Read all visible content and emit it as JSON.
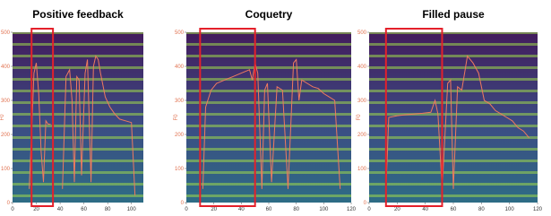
{
  "chart_data": [
    {
      "type": "spectrogram",
      "title": "Positive feedback",
      "ylabel": "F0",
      "xlim": [
        0,
        110
      ],
      "xticks": [
        0,
        20,
        40,
        60,
        80,
        100
      ],
      "ylim": [
        0,
        500
      ],
      "yticks": [
        0,
        100,
        200,
        300,
        400,
        500
      ],
      "highlight": [
        16,
        34
      ],
      "box_color": "#e4202a",
      "series": [
        {
          "color": "#ef7a5e",
          "x": [
            14,
            16,
            18,
            20,
            22,
            24,
            26,
            28,
            30,
            32,
            38,
            42,
            45,
            48,
            50,
            52,
            54,
            56,
            58,
            61,
            63,
            66,
            68,
            70,
            72,
            74,
            78,
            82,
            86,
            90,
            95,
            100,
            103
          ],
          "values": [
            40,
            200,
            380,
            410,
            320,
            150,
            60,
            240,
            230,
            230,
            null,
            40,
            370,
            390,
            300,
            60,
            370,
            360,
            80,
            380,
            420,
            60,
            400,
            430,
            420,
            380,
            310,
            280,
            260,
            245,
            240,
            235,
            20
          ]
        }
      ]
    },
    {
      "type": "spectrogram",
      "title": "Coquetry",
      "ylabel": "F0",
      "xlim": [
        0,
        120
      ],
      "xticks": [
        0,
        20,
        40,
        60,
        80,
        100,
        120
      ],
      "ylim": [
        0,
        500
      ],
      "yticks": [
        0,
        100,
        200,
        300,
        400,
        500
      ],
      "highlight": [
        10,
        50
      ],
      "box_color": "#e4202a",
      "series": [
        {
          "color": "#ef7a5e",
          "x": [
            12,
            14,
            18,
            22,
            28,
            34,
            40,
            46,
            48,
            50,
            52,
            55,
            57,
            59,
            62,
            66,
            70,
            74,
            78,
            80,
            82,
            84,
            88,
            92,
            96,
            100,
            104,
            108,
            112
          ],
          "values": [
            40,
            280,
            330,
            350,
            360,
            370,
            380,
            390,
            360,
            410,
            380,
            40,
            330,
            350,
            60,
            340,
            330,
            40,
            410,
            420,
            300,
            360,
            350,
            340,
            335,
            320,
            310,
            300,
            40
          ]
        }
      ]
    },
    {
      "type": "spectrogram",
      "title": "Filled pause",
      "ylabel": "F0",
      "xlim": [
        0,
        120
      ],
      "xticks": [
        0,
        20,
        40,
        60,
        80,
        100,
        120
      ],
      "ylim": [
        0,
        500
      ],
      "yticks": [
        0,
        100,
        200,
        300,
        400,
        500
      ],
      "highlight": [
        12,
        52
      ],
      "box_color": "#e4202a",
      "series": [
        {
          "color": "#ef7a5e",
          "x": [
            12,
            14,
            20,
            26,
            32,
            38,
            44,
            47,
            49,
            52,
            56,
            58,
            60,
            63,
            66,
            70,
            74,
            78,
            82,
            86,
            90,
            94,
            98,
            102,
            106,
            110,
            114
          ],
          "values": [
            40,
            250,
            255,
            258,
            260,
            262,
            265,
            300,
            260,
            40,
            350,
            360,
            40,
            340,
            330,
            430,
            410,
            380,
            300,
            290,
            270,
            260,
            250,
            240,
            220,
            210,
            190
          ]
        }
      ]
    }
  ]
}
